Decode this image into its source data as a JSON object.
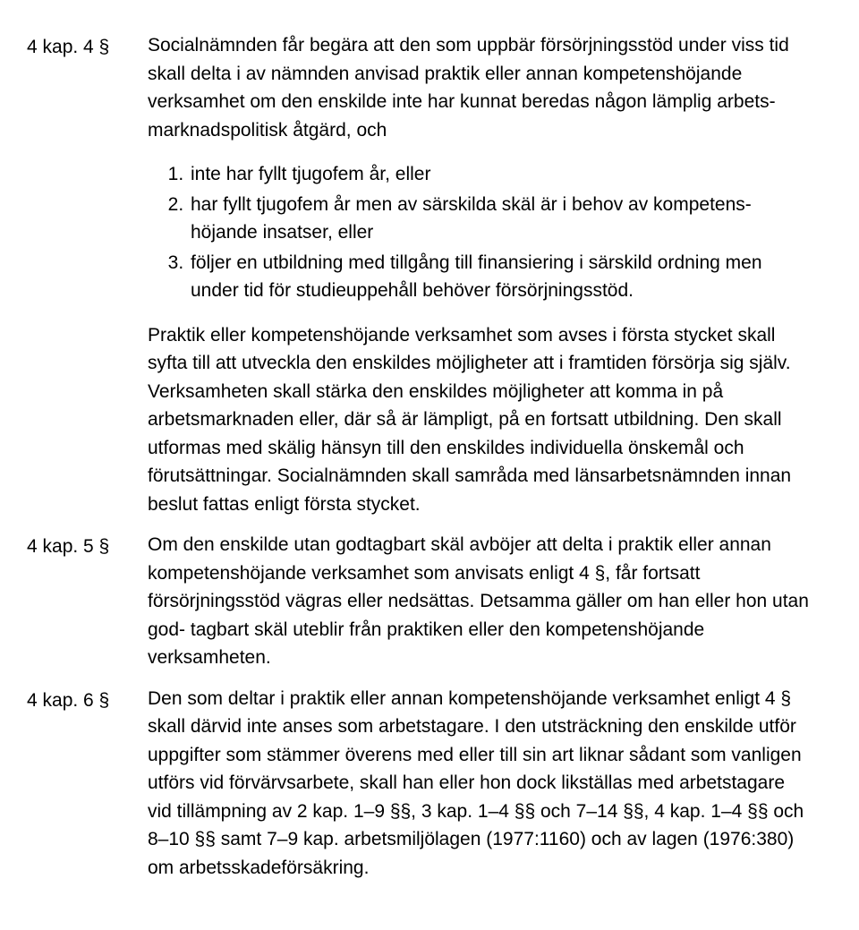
{
  "sections": [
    {
      "label": "4 kap. 4 §",
      "blocks": [
        {
          "type": "para",
          "text": "Socialnämnden får begära att den som uppbär försörjningsstöd under viss tid skall delta i av nämnden anvisad praktik eller annan kompetenshöjande verksamhet om den enskilde inte har kunnat beredas någon lämplig arbets- marknadspolitisk åtgärd, och"
        },
        {
          "type": "list",
          "items": [
            "inte har fyllt tjugofem år, eller",
            "har fyllt tjugofem år men av särskilda skäl är i behov av kompetens- höjande insatser, eller",
            "följer en utbildning med tillgång till finansiering i särskild ordning men under tid för studieuppehåll behöver försörjningsstöd."
          ]
        },
        {
          "type": "para",
          "text": "Praktik eller kompetenshöjande verksamhet som avses i första stycket skall syfta till att utveckla den enskildes möjligheter att i framtiden försörja sig själv. Verksamheten skall stärka den enskildes möjligheter att komma in på arbetsmarknaden eller, där så är lämpligt, på en fortsatt utbildning. Den skall utformas med skälig hänsyn till den enskildes individuella önskemål och förutsättningar. Socialnämnden skall samråda med länsarbetsnämnden innan beslut fattas enligt första stycket."
        }
      ]
    },
    {
      "label": "4 kap. 5 §",
      "blocks": [
        {
          "type": "para",
          "text": "Om den enskilde utan godtagbart skäl avböjer att delta i praktik eller annan kompetenshöjande verksamhet som anvisats enligt 4 §, får fortsatt försörjningsstöd vägras eller nedsättas. Detsamma gäller om han eller hon utan god- tagbart skäl uteblir från praktiken eller den kompetenshöjande verksamheten."
        }
      ]
    },
    {
      "label": "4 kap. 6 §",
      "blocks": [
        {
          "type": "para",
          "text": "Den som deltar i praktik eller annan kompetenshöjande verksamhet enligt 4 § skall därvid inte anses som arbetstagare. I den utsträckning den enskilde utför uppgifter som stämmer överens med eller till sin art liknar sådant som vanligen utförs vid förvärvsarbete, skall han eller hon dock likställas med arbetstagare vid tillämpning av 2 kap. 1–9 §§, 3 kap. 1–4 §§ och 7–14 §§, 4 kap. 1–4 §§ och 8–10 §§ samt 7–9 kap. arbetsmiljölagen (1977:1160) och av lagen (1976:380) om arbetsskadeförsäkring."
        }
      ]
    }
  ]
}
